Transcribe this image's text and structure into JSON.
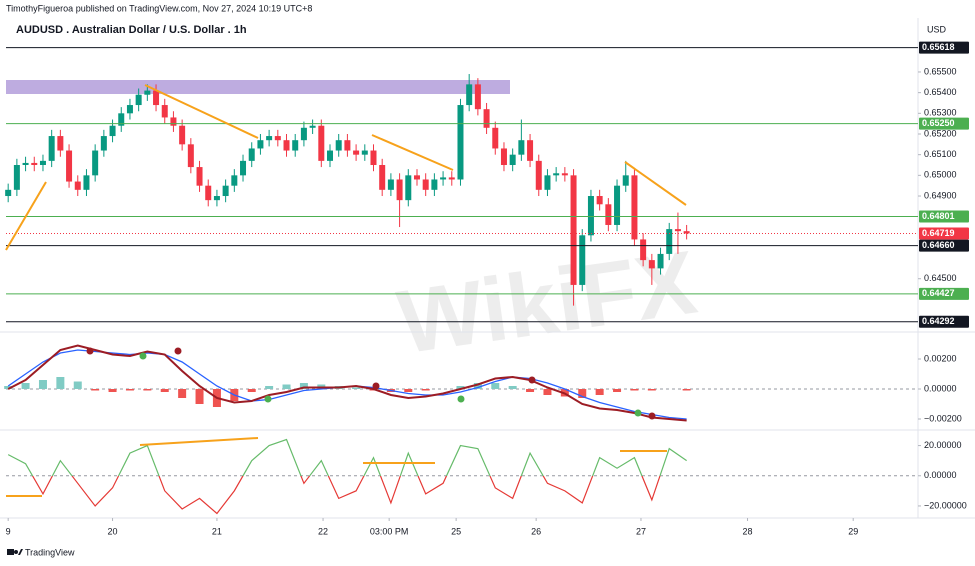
{
  "header": {
    "publisher": "TimothyFigueroa published on TradingView.com, Nov 27, 2024 10:19 UTC+8",
    "title": "AUDUSD . Australian Dollar / U.S. Dollar . 1h",
    "currency": "USD"
  },
  "footer": {
    "brand": "TradingView"
  },
  "watermark": "WikiFX",
  "chart_data": [
    {
      "type": "candlestick",
      "up_color": "#089981",
      "down_color": "#f23645",
      "xlim": [
        -0.5,
        209.2
      ],
      "xticks": [
        {
          "value": 0,
          "label": "9"
        },
        {
          "value": 24,
          "label": "20"
        },
        {
          "value": 48,
          "label": "21"
        },
        {
          "value": 72.4,
          "label": "22"
        },
        {
          "value": 87.6,
          "label": "03:00 PM"
        },
        {
          "value": 103,
          "label": "25"
        },
        {
          "value": 121.4,
          "label": "26"
        },
        {
          "value": 145.5,
          "label": "27"
        },
        {
          "value": 170,
          "label": "28"
        },
        {
          "value": 194.3,
          "label": "29"
        }
      ],
      "ylim": [
        0.64252,
        0.65761
      ],
      "yticks": [
        {
          "value": 0.655,
          "label": "0.65500"
        },
        {
          "value": 0.654,
          "label": "0.65400"
        },
        {
          "value": 0.653,
          "label": "0.65300"
        },
        {
          "value": 0.652,
          "label": "0.65200"
        },
        {
          "value": 0.651,
          "label": "0.65100"
        },
        {
          "value": 0.65,
          "label": "0.65000"
        },
        {
          "value": 0.649,
          "label": "0.64900"
        },
        {
          "value": 0.645,
          "label": "0.64500"
        }
      ],
      "levels": [
        {
          "value": 0.65618,
          "label": "0.65618",
          "color": "#131722",
          "style": "solid"
        },
        {
          "value": 0.6525,
          "label": "0.65250",
          "color": "#4caf50",
          "style": "solid"
        },
        {
          "value": 0.64801,
          "label": "0.64801",
          "color": "#4caf50",
          "style": "solid"
        },
        {
          "value": 0.64719,
          "label": "0.64719",
          "color": "#f23645",
          "style": "dotted"
        },
        {
          "value": 0.6466,
          "label": "0.64660",
          "color": "#131722",
          "style": "solid"
        },
        {
          "value": 0.64427,
          "label": "0.64427",
          "color": "#4caf50",
          "style": "solid"
        },
        {
          "value": 0.64292,
          "label": "0.64292",
          "color": "#131722",
          "style": "solid"
        }
      ],
      "x": [
        0,
        2,
        4,
        6,
        8,
        10,
        12,
        14,
        16,
        18,
        20,
        22,
        24,
        26,
        28,
        30,
        32,
        34,
        36,
        38,
        40,
        42,
        44,
        46,
        48,
        50,
        52,
        54,
        56,
        58,
        60,
        62,
        64,
        66,
        68,
        70,
        72,
        74,
        76,
        78,
        80,
        82,
        84,
        86,
        88,
        90,
        92,
        94,
        96,
        98,
        100,
        102,
        104,
        106,
        108,
        110,
        112,
        114,
        116,
        118,
        120,
        122,
        124,
        126,
        128,
        130,
        132,
        134,
        136,
        138,
        140,
        142,
        144,
        146,
        148,
        150,
        152,
        154,
        156
      ],
      "open": [
        0.649,
        0.6493,
        0.6505,
        0.6506,
        0.6505,
        0.6507,
        0.6519,
        0.6512,
        0.6497,
        0.6493,
        0.65,
        0.6512,
        0.6519,
        0.6524,
        0.653,
        0.6534,
        0.6539,
        0.6541,
        0.6534,
        0.6528,
        0.6524,
        0.6515,
        0.6504,
        0.6495,
        0.6488,
        0.649,
        0.6495,
        0.65,
        0.6507,
        0.6513,
        0.6517,
        0.6519,
        0.6517,
        0.6512,
        0.6517,
        0.6523,
        0.6524,
        0.6507,
        0.6512,
        0.6517,
        0.6512,
        0.651,
        0.6512,
        0.6505,
        0.6493,
        0.6498,
        0.6488,
        0.65,
        0.6498,
        0.6493,
        0.6498,
        0.6499,
        0.6498,
        0.6534,
        0.6544,
        0.6532,
        0.6523,
        0.6513,
        0.6505,
        0.651,
        0.6517,
        0.6507,
        0.6493,
        0.65,
        0.6501,
        0.65,
        0.6447,
        0.6471,
        0.649,
        0.6486,
        0.6476,
        0.6495,
        0.65,
        0.6469,
        0.6459,
        0.6455,
        0.6462,
        0.6474,
        0.6473
      ],
      "high": [
        0.6496,
        0.6508,
        0.6509,
        0.6509,
        0.651,
        0.6522,
        0.6522,
        0.6515,
        0.65,
        0.6503,
        0.6515,
        0.6522,
        0.6527,
        0.6533,
        0.6537,
        0.6542,
        0.6544,
        0.6544,
        0.6537,
        0.6531,
        0.6527,
        0.6518,
        0.6507,
        0.6498,
        0.6493,
        0.6498,
        0.6503,
        0.651,
        0.6516,
        0.652,
        0.6522,
        0.6522,
        0.652,
        0.652,
        0.6526,
        0.6527,
        0.6527,
        0.6515,
        0.652,
        0.652,
        0.6515,
        0.6515,
        0.6515,
        0.6508,
        0.6501,
        0.6501,
        0.6503,
        0.6503,
        0.6501,
        0.6501,
        0.6502,
        0.6502,
        0.6537,
        0.6549,
        0.6547,
        0.6535,
        0.6526,
        0.6516,
        0.6513,
        0.6527,
        0.652,
        0.651,
        0.6503,
        0.6504,
        0.6504,
        0.6503,
        0.6474,
        0.6493,
        0.6493,
        0.6489,
        0.6498,
        0.6507,
        0.6503,
        0.6472,
        0.6462,
        0.6465,
        0.6477,
        0.6482,
        0.6476
      ],
      "low": [
        0.6487,
        0.649,
        0.6502,
        0.6502,
        0.6502,
        0.6504,
        0.6509,
        0.6494,
        0.649,
        0.649,
        0.6497,
        0.6509,
        0.6516,
        0.6521,
        0.6527,
        0.6531,
        0.6536,
        0.6531,
        0.6525,
        0.6521,
        0.6512,
        0.6501,
        0.6492,
        0.6485,
        0.6485,
        0.6487,
        0.6492,
        0.6497,
        0.6504,
        0.651,
        0.6514,
        0.6514,
        0.6509,
        0.6509,
        0.6514,
        0.652,
        0.6504,
        0.6504,
        0.6509,
        0.6509,
        0.6507,
        0.6507,
        0.6502,
        0.649,
        0.649,
        0.6475,
        0.6485,
        0.6495,
        0.649,
        0.649,
        0.6495,
        0.6495,
        0.6495,
        0.6531,
        0.6529,
        0.652,
        0.651,
        0.6502,
        0.6502,
        0.6507,
        0.6504,
        0.649,
        0.649,
        0.6497,
        0.6497,
        0.6437,
        0.6444,
        0.6468,
        0.6483,
        0.6473,
        0.6473,
        0.6492,
        0.6466,
        0.6456,
        0.6447,
        0.6452,
        0.6459,
        0.6462,
        0.6469
      ],
      "close": [
        0.6493,
        0.6505,
        0.6506,
        0.6505,
        0.6507,
        0.6519,
        0.6512,
        0.6497,
        0.6493,
        0.65,
        0.6512,
        0.6519,
        0.6524,
        0.653,
        0.6534,
        0.6539,
        0.6541,
        0.6534,
        0.6528,
        0.6524,
        0.6515,
        0.6504,
        0.6495,
        0.6488,
        0.649,
        0.6495,
        0.65,
        0.6507,
        0.6513,
        0.6517,
        0.6519,
        0.6517,
        0.6512,
        0.6517,
        0.6523,
        0.6524,
        0.6507,
        0.6512,
        0.6517,
        0.6512,
        0.651,
        0.6512,
        0.6505,
        0.6493,
        0.6498,
        0.6488,
        0.65,
        0.6498,
        0.6493,
        0.6498,
        0.6499,
        0.6498,
        0.6534,
        0.6544,
        0.6532,
        0.6523,
        0.6513,
        0.6505,
        0.651,
        0.6517,
        0.6507,
        0.6493,
        0.65,
        0.6501,
        0.65,
        0.6447,
        0.6471,
        0.649,
        0.6486,
        0.6476,
        0.6495,
        0.65,
        0.6469,
        0.6459,
        0.6455,
        0.6462,
        0.6474,
        0.6473,
        0.64719
      ]
    },
    {
      "type": "macd",
      "zero_line": true,
      "ylim": [
        -0.0026,
        0.0036
      ],
      "yticks": [
        {
          "value": 0.002,
          "label": "0.00200"
        },
        {
          "value": 0,
          "label": "0.00000"
        },
        {
          "value": -0.002,
          "label": "−0.00200"
        }
      ],
      "x": [
        0,
        4,
        8,
        12,
        16,
        20,
        24,
        28,
        32,
        36,
        40,
        44,
        48,
        52,
        56,
        60,
        64,
        68,
        72,
        76,
        80,
        84,
        88,
        92,
        96,
        100,
        104,
        108,
        112,
        116,
        120,
        124,
        128,
        132,
        136,
        140,
        144,
        148,
        152,
        156
      ],
      "histogram": {
        "up_color": "#80cbc4",
        "down_color": "#ef5350",
        "values": [
          0.0002,
          0.0004,
          0.0006,
          0.0008,
          0.0005,
          -0.0001,
          -0.0002,
          -0.0001,
          -0.0001,
          -0.0002,
          -0.0006,
          -0.001,
          -0.0012,
          -0.0008,
          -0.0002,
          0.0002,
          0.0003,
          0.0004,
          0.0003,
          0.0002,
          0.0001,
          -0.0001,
          -0.0002,
          -0.0002,
          -0.0001,
          0.0,
          0.0002,
          0.0004,
          0.0004,
          0.0002,
          -0.0002,
          -0.0004,
          -0.0005,
          -0.0006,
          -0.0004,
          -0.0002,
          -0.0001,
          -0.0001,
          0.0,
          -0.0001
        ]
      },
      "series": [
        {
          "color": "#2962ff",
          "values": [
            0.0002,
            0.001,
            0.0018,
            0.0024,
            0.0026,
            0.0025,
            0.0024,
            0.0023,
            0.0024,
            0.0023,
            0.0018,
            0.001,
            0.0002,
            -0.0004,
            -0.0008,
            -0.0007,
            -0.0004,
            -0.0001,
            0.0,
            0.0001,
            0.0002,
            0.0001,
            -0.0001,
            -0.0003,
            -0.0004,
            -0.0004,
            -0.0002,
            0.0001,
            0.0005,
            0.0008,
            0.0007,
            0.0004,
            0.0,
            -0.0005,
            -0.0009,
            -0.0012,
            -0.0015,
            -0.0017,
            -0.0019,
            -0.002
          ]
        },
        {
          "color": "#9c1c24",
          "values": [
            0.0,
            0.0006,
            0.0016,
            0.0026,
            0.0029,
            0.0026,
            0.0023,
            0.0022,
            0.0025,
            0.0023,
            0.0012,
            0.0002,
            -0.0006,
            -0.0009,
            -0.0008,
            -0.0004,
            -0.0002,
            0.0001,
            0.0001,
            0.0001,
            0.0002,
            0.0,
            -0.0004,
            -0.0006,
            -0.0005,
            -0.0003,
            0.0,
            0.0003,
            0.0007,
            0.0008,
            0.0006,
            0.0001,
            -0.0003,
            -0.001,
            -0.0013,
            -0.0014,
            -0.0016,
            -0.0019,
            -0.002,
            -0.0021
          ]
        }
      ]
    },
    {
      "type": "momentum",
      "zero_line": true,
      "color": "#66bb6a",
      "color_below": "#e53935",
      "ylim": [
        -26,
        29
      ],
      "yticks": [
        {
          "value": 20,
          "label": "20.00000"
        },
        {
          "value": 0,
          "label": "0.00000"
        },
        {
          "value": -20,
          "label": "−20.00000"
        }
      ],
      "x": [
        0,
        4,
        8,
        12,
        16,
        20,
        24,
        28,
        32,
        36,
        40,
        44,
        48,
        52,
        56,
        60,
        64,
        68,
        72,
        76,
        80,
        84,
        88,
        92,
        96,
        100,
        104,
        108,
        112,
        116,
        120,
        124,
        128,
        132,
        136,
        140,
        144,
        148,
        152,
        156
      ],
      "values": [
        14,
        8,
        -12,
        10,
        -5,
        -20,
        -8,
        15,
        20,
        -10,
        -22,
        -15,
        -25,
        -10,
        10,
        20,
        24,
        -5,
        10,
        -15,
        -10,
        12,
        -18,
        15,
        -12,
        -5,
        20,
        18,
        -8,
        -15,
        15,
        -5,
        -10,
        -18,
        12,
        5,
        12,
        -16,
        18,
        10
      ]
    }
  ]
}
